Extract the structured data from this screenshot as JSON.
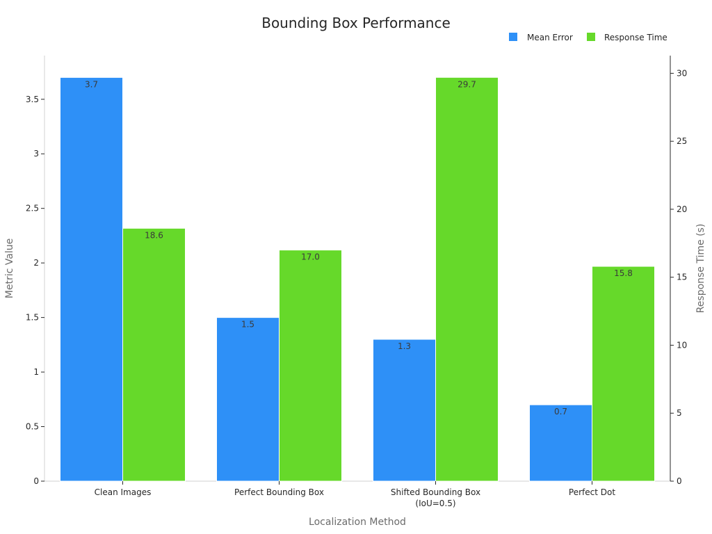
{
  "chart_data": {
    "type": "bar",
    "title": "Bounding Box Performance",
    "xlabel": "Localization Method",
    "ylabel": "Metric Value",
    "y2label": "Response Time (s)",
    "categories": [
      [
        "Clean Images"
      ],
      [
        "Perfect Bounding Box"
      ],
      [
        "Shifted Bounding Box",
        "(IoU=0.5)"
      ],
      [
        "Perfect Dot"
      ]
    ],
    "series": [
      {
        "name": "Mean Error",
        "axis": "left",
        "color": "#2e90f7",
        "values": [
          3.7,
          1.5,
          1.3,
          0.7
        ],
        "labels": [
          "3.7",
          "1.5",
          "1.3",
          "0.7"
        ]
      },
      {
        "name": "Response Time",
        "axis": "right",
        "color": "#66d92a",
        "values": [
          18.6,
          17.0,
          29.7,
          15.8
        ],
        "labels": [
          "18.6",
          "17.0",
          "29.7",
          "15.8"
        ]
      }
    ],
    "ylim": [
      0,
      3.9
    ],
    "yticks": [
      "0",
      "0.5",
      "1",
      "1.5",
      "2",
      "2.5",
      "3",
      "3.5"
    ],
    "y2lim": [
      0,
      31.3
    ],
    "y2ticks": [
      "0",
      "5",
      "10",
      "15",
      "20",
      "25",
      "30"
    ],
    "grid": false,
    "legend_position": "top-right"
  }
}
